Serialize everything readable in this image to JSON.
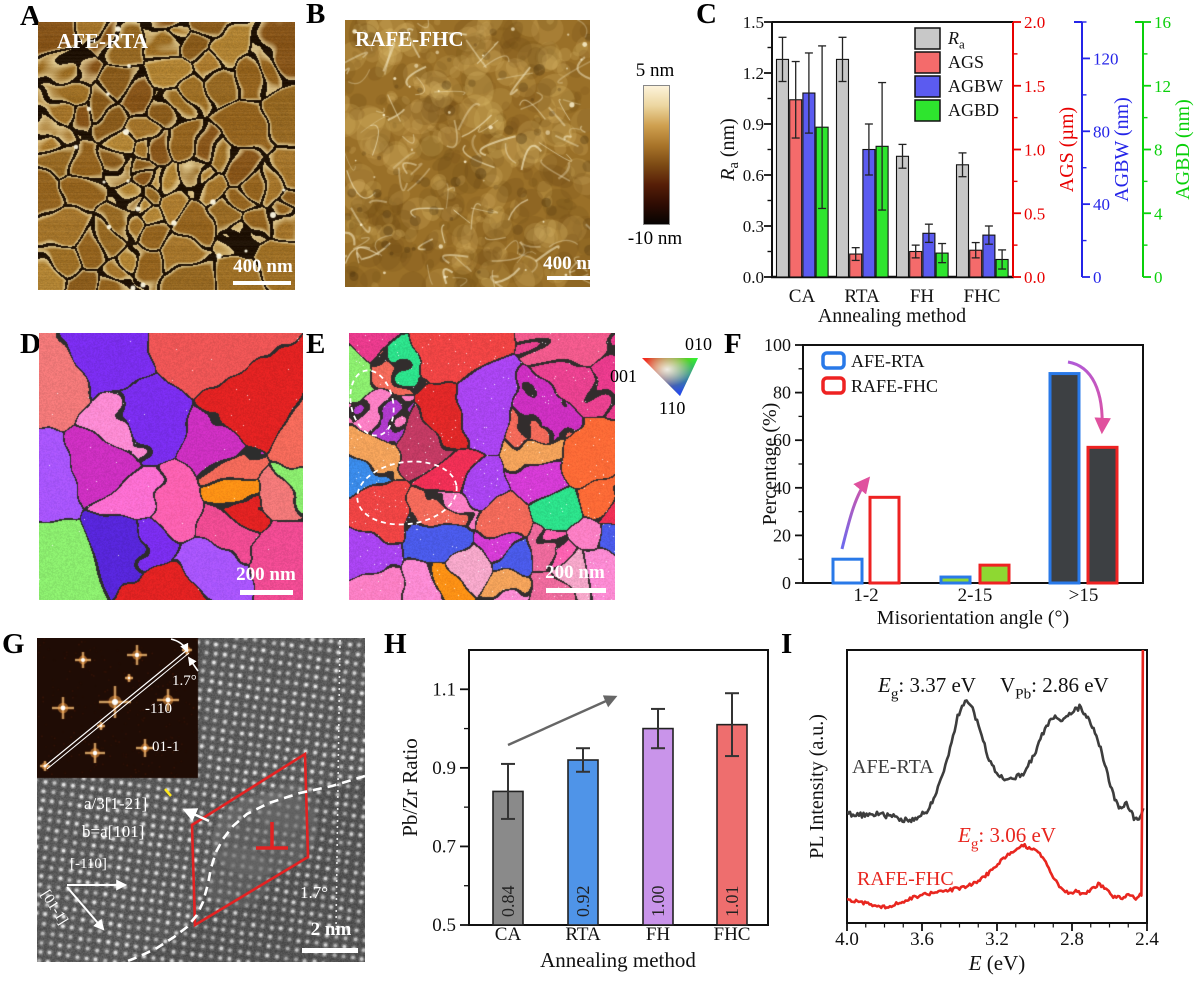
{
  "panels": {
    "A": {
      "label": "A",
      "title": "AFE-RTA",
      "scale": "400 nm",
      "palette": [
        "#a3742b",
        "#956823",
        "#8a5c1d",
        "#b08334",
        "#9d6f26",
        "#87551a",
        "#aa7a2e",
        "#93631f"
      ]
    },
    "B": {
      "label": "B",
      "title": "RAFE-FHC",
      "scale": "400 nm",
      "base": "#9a7028",
      "blob_dark": "#6e4a14",
      "blob_light": "#e2c070",
      "line_light": "#f6ecc8"
    },
    "colorbar": {
      "top": "5 nm",
      "bottom": "-10 nm",
      "stops": [
        "#fdf3da",
        "#ecd6a0",
        "#cfa050",
        "#a9752a",
        "#7c4a14",
        "#561e07",
        "#2e0c03",
        "#060302"
      ]
    },
    "D": {
      "label": "D",
      "scale": "200 nm",
      "palette": [
        "#e83a3a",
        "#f26a5a",
        "#8bec6e",
        "#f58fb5",
        "#ff8ad2",
        "#28e069",
        "#7a2ded",
        "#a944f0",
        "#ff9015",
        "#d43bd4",
        "#ec2f7e",
        "#ff61b0",
        "#e02222",
        "#a855ff",
        "#e8418f",
        "#c23a63",
        "#5726d9",
        "#ff6ed0",
        "#ec5555",
        "#f4a6c8",
        "#d4488c",
        "#f07878",
        "#cc2fc0",
        "#ee4b92"
      ]
    },
    "E": {
      "label": "E",
      "scale": "200 nm",
      "palette": [
        "#e02828",
        "#ec2f6e",
        "#f05a8c",
        "#ff7fc4",
        "#e8418f",
        "#d42558",
        "#ff61b0",
        "#cc2fc0",
        "#a944f0",
        "#7a2ded",
        "#4a5ae8",
        "#3a8ae8",
        "#ff9015",
        "#f2a25a",
        "#8bec6e",
        "#2ce08a",
        "#f26a5a",
        "#ee4444",
        "#d43bd4",
        "#ff8ad2",
        "#ec6a9c",
        "#b03acc",
        "#f4a6c8",
        "#e0483c",
        "#ee2f55",
        "#c23a63",
        "#ff6a36",
        "#e83a8c"
      ],
      "ipf": {
        "c001": "001",
        "c010": "010",
        "c110": "110"
      }
    },
    "F": {
      "label": "F"
    },
    "C": {
      "label": "C"
    },
    "G": {
      "label": "G",
      "annotations": {
        "fft_angle": "1.7°",
        "fft_spot_a": "-110",
        "fft_spot_b": "01-1",
        "burgers_line1": "a/3[1-21]",
        "burgers_line2": "b=a[101]",
        "axis_h": "[-110]",
        "axis_d": "[01-1]",
        "tilt_angle": "1.7°",
        "scale_bar": "2 nm"
      }
    },
    "H": {
      "label": "H"
    },
    "I": {
      "label": "I"
    }
  },
  "chart_data": [
    {
      "id": "C",
      "type": "bar",
      "categories": [
        "CA",
        "RTA",
        "FH",
        "FHC"
      ],
      "xlabel": "Annealing method",
      "axes": [
        {
          "label_parts": [
            {
              "t": "R",
              "i": 1
            },
            {
              "t": "a",
              "sub": 1
            },
            {
              "t": " (nm)"
            }
          ],
          "color": "#111111",
          "range": [
            0,
            1.5
          ],
          "ticks": [
            "0.0",
            "0.3",
            "0.6",
            "0.9",
            "1.2",
            "1.5"
          ],
          "minor_step": 0.15
        },
        {
          "label_parts": [
            {
              "t": "AGS (µm)"
            }
          ],
          "color": "#e80000",
          "range": [
            0,
            2
          ],
          "ticks": [
            "0.0",
            "0.5",
            "1.0",
            "1.5",
            "2.0"
          ],
          "minor_step": 0.25
        },
        {
          "label_parts": [
            {
              "t": "AGBW (nm)"
            }
          ],
          "color": "#2424e8",
          "range": [
            0,
            140
          ],
          "ticks": [
            "0",
            "40",
            "80",
            "120"
          ],
          "minor_step": 20
        },
        {
          "label_parts": [
            {
              "t": "AGBD (nm)"
            }
          ],
          "color": "#0ad00a",
          "range": [
            0,
            16
          ],
          "ticks": [
            "0",
            "4",
            "8",
            "12",
            "16"
          ],
          "minor_step": 2
        }
      ],
      "series": [
        {
          "name": "Ra",
          "legend_parts": [
            {
              "t": "R",
              "i": 1
            },
            {
              "t": "a",
              "sub": 1
            }
          ],
          "color": "#c8c8c8",
          "axis": 0,
          "values": [
            1.28,
            1.28,
            0.71,
            0.66
          ],
          "errors": [
            0.13,
            0.13,
            0.07,
            0.07
          ]
        },
        {
          "name": "AGS",
          "legend_parts": [
            {
              "t": "AGS"
            }
          ],
          "color": "#f46b6b",
          "axis": 1,
          "values": [
            1.39,
            0.18,
            0.2,
            0.21
          ],
          "errors": [
            0.3,
            0.05,
            0.05,
            0.06
          ]
        },
        {
          "name": "AGBW",
          "legend_parts": [
            {
              "t": "AGBW"
            }
          ],
          "color": "#5b5bf0",
          "axis": 2,
          "values": [
            101,
            70,
            24,
            23
          ],
          "errors": [
            22,
            14,
            5,
            5
          ]
        },
        {
          "name": "AGBD",
          "legend_parts": [
            {
              "t": "AGBD"
            }
          ],
          "color": "#2ee52e",
          "axis": 3,
          "values": [
            9.4,
            8.2,
            1.5,
            1.1
          ],
          "errors": [
            5.1,
            4.0,
            0.6,
            0.6
          ]
        }
      ]
    },
    {
      "id": "F",
      "type": "bar",
      "categories": [
        "1-2",
        "2-15",
        ">15"
      ],
      "xlabel": "Misorientation angle (°)",
      "ylabel": "Percentage (%)",
      "ylim": [
        0,
        100
      ],
      "yticks": [
        "0",
        "20",
        "40",
        "60",
        "80",
        "100"
      ],
      "minor_step": 10,
      "series": [
        {
          "name": "AFE-RTA",
          "edge_color": "#2979e8",
          "values": [
            10,
            2.5,
            88
          ]
        },
        {
          "name": "RAFE-FHC",
          "edge_color": "#ee2222",
          "values": [
            36,
            7.5,
            57
          ]
        }
      ],
      "group_fills": [
        "#ffffff",
        "#8ed832",
        "#3d4043"
      ],
      "arrow_colors": [
        "#6a6af0",
        "#e0519e"
      ]
    },
    {
      "id": "H",
      "type": "bar",
      "categories": [
        "CA",
        "RTA",
        "FH",
        "FHC"
      ],
      "xlabel": "Annealing method",
      "ylabel": "Pb/Zr Ratio",
      "ylim": [
        0.5,
        1.2
      ],
      "yticks": [
        "0.5",
        "0.7",
        "0.9",
        "1.1"
      ],
      "minor_step": 0.1,
      "values": [
        0.84,
        0.92,
        1.0,
        1.01
      ],
      "errors": [
        0.07,
        0.03,
        0.05,
        0.08
      ],
      "bar_labels": [
        "0.84",
        "0.92",
        "1.00",
        "1.01"
      ],
      "bar_colors": [
        "#8a8a8a",
        "#4f94e8",
        "#c994ea",
        "#ee6e6e"
      ],
      "arrow_color": "#666666"
    },
    {
      "id": "I",
      "type": "line",
      "xlabel_parts": [
        {
          "t": "E",
          "i": 1
        },
        {
          "t": " (eV)"
        }
      ],
      "ylabel": "PL Intensity (a.u.)",
      "xlim": [
        4.0,
        2.4
      ],
      "xticks": [
        "4.0",
        "3.6",
        "3.2",
        "2.8",
        "2.4"
      ],
      "minor_step": 0.1,
      "series": [
        {
          "name": "AFE-RTA",
          "color": "#3d3d3d",
          "points": [
            [
              4.0,
              0.4
            ],
            [
              3.92,
              0.395
            ],
            [
              3.84,
              0.4
            ],
            [
              3.76,
              0.39
            ],
            [
              3.68,
              0.375
            ],
            [
              3.62,
              0.385
            ],
            [
              3.56,
              0.42
            ],
            [
              3.5,
              0.52
            ],
            [
              3.45,
              0.645
            ],
            [
              3.41,
              0.755
            ],
            [
              3.37,
              0.815
            ],
            [
              3.33,
              0.79
            ],
            [
              3.29,
              0.7
            ],
            [
              3.25,
              0.615
            ],
            [
              3.21,
              0.555
            ],
            [
              3.16,
              0.525
            ],
            [
              3.11,
              0.525
            ],
            [
              3.06,
              0.55
            ],
            [
              3.01,
              0.605
            ],
            [
              2.96,
              0.685
            ],
            [
              2.92,
              0.735
            ],
            [
              2.89,
              0.75
            ],
            [
              2.86,
              0.745
            ],
            [
              2.83,
              0.755
            ],
            [
              2.79,
              0.78
            ],
            [
              2.76,
              0.79
            ],
            [
              2.73,
              0.765
            ],
            [
              2.7,
              0.73
            ],
            [
              2.67,
              0.685
            ],
            [
              2.64,
              0.625
            ],
            [
              2.61,
              0.545
            ],
            [
              2.58,
              0.47
            ],
            [
              2.55,
              0.425
            ],
            [
              2.53,
              0.415
            ],
            [
              2.51,
              0.44
            ],
            [
              2.49,
              0.41
            ],
            [
              2.47,
              0.385
            ],
            [
              2.45,
              0.38
            ],
            [
              2.43,
              0.4
            ],
            [
              2.42,
              0.42
            ]
          ]
        },
        {
          "name": "RAFE-FHC",
          "color": "#e8261f",
          "points": [
            [
              4.0,
              0.085
            ],
            [
              3.92,
              0.075
            ],
            [
              3.84,
              0.062
            ],
            [
              3.78,
              0.06
            ],
            [
              3.72,
              0.075
            ],
            [
              3.64,
              0.095
            ],
            [
              3.56,
              0.108
            ],
            [
              3.48,
              0.115
            ],
            [
              3.4,
              0.128
            ],
            [
              3.33,
              0.142
            ],
            [
              3.27,
              0.168
            ],
            [
              3.21,
              0.205
            ],
            [
              3.15,
              0.248
            ],
            [
              3.1,
              0.272
            ],
            [
              3.06,
              0.285
            ],
            [
              3.02,
              0.272
            ],
            [
              2.98,
              0.258
            ],
            [
              2.94,
              0.22
            ],
            [
              2.9,
              0.165
            ],
            [
              2.86,
              0.128
            ],
            [
              2.82,
              0.108
            ],
            [
              2.78,
              0.115
            ],
            [
              2.74,
              0.108
            ],
            [
              2.7,
              0.122
            ],
            [
              2.66,
              0.142
            ],
            [
              2.62,
              0.128
            ],
            [
              2.58,
              0.098
            ],
            [
              2.54,
              0.092
            ],
            [
              2.5,
              0.102
            ],
            [
              2.46,
              0.092
            ],
            [
              2.43,
              0.105
            ],
            [
              2.426,
              0.45
            ],
            [
              2.422,
              1.1
            ]
          ]
        }
      ],
      "annotations": [
        {
          "parts": [
            {
              "t": "E",
              "i": 1
            },
            {
              "t": "g",
              "sub": 1
            },
            {
              "t": ": 3.37 eV"
            }
          ],
          "color": "#111111"
        },
        {
          "parts": [
            {
              "t": "V"
            },
            {
              "t": "Pb",
              "sub": 1
            },
            {
              "t": ": 2.86 eV"
            }
          ],
          "color": "#111111"
        },
        {
          "parts": [
            {
              "t": "E",
              "i": 1
            },
            {
              "t": "g",
              "sub": 1
            },
            {
              "t": ": 3.06 eV"
            }
          ],
          "color": "#e8261f"
        }
      ]
    }
  ]
}
